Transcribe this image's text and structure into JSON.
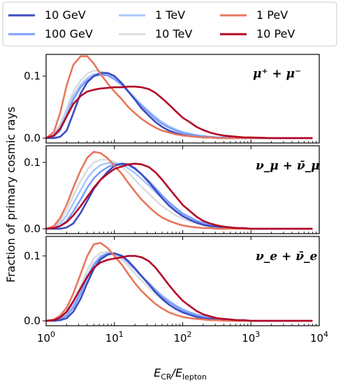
{
  "chart_data": {
    "type": "line",
    "ylabel": "Fraction of primary cosmic rays",
    "xlabel_main": "E",
    "xlabel_sub1": "CR",
    "xlabel_mid": "/E",
    "xlabel_sub2": "lepton",
    "xscale": "log",
    "xlim": [
      1,
      10000
    ],
    "x_ticks": [
      {
        "base": "10",
        "exp": "0"
      },
      {
        "base": "10",
        "exp": "1"
      },
      {
        "base": "10",
        "exp": "2"
      },
      {
        "base": "10",
        "exp": "3"
      },
      {
        "base": "10",
        "exp": "4"
      }
    ],
    "y_ticks": [
      "0.0",
      "0.1"
    ],
    "legend": {
      "placement": "top, outside, 3 columns",
      "entries": [
        {
          "name": "10 GeV",
          "color": "#3b4cc0"
        },
        {
          "name": "100 GeV",
          "color": "#7b9ff9"
        },
        {
          "name": "1 TeV",
          "color": "#aac7fd"
        },
        {
          "name": "10 TeV",
          "color": "#dcdddd"
        },
        {
          "name": "1 PeV",
          "color": "#e8765c"
        },
        {
          "name": "10 PeV",
          "color": "#b40426"
        }
      ]
    },
    "x": [
      1,
      1.3,
      1.6,
      2,
      2.5,
      3.2,
      4,
      5,
      6.3,
      8,
      10,
      13,
      16,
      20,
      25,
      32,
      40,
      50,
      63,
      80,
      100,
      130,
      160,
      200,
      250,
      320,
      400,
      500,
      630,
      800,
      1000,
      2000,
      5000,
      8000
    ],
    "panels": [
      {
        "label": "μ⁺ + μ⁻",
        "ylim": [
          0,
          0.135
        ],
        "series": [
          {
            "name": "10 GeV",
            "values": [
              0,
              0,
              0.002,
              0.012,
              0.04,
              0.072,
              0.09,
              0.1,
              0.105,
              0.105,
              0.1,
              0.088,
              0.075,
              0.062,
              0.048,
              0.036,
              0.026,
              0.018,
              0.012,
              0.008,
              0.005,
              0.003,
              0.002,
              0.001,
              0.001,
              0,
              0,
              0,
              0,
              0,
              0,
              0,
              0,
              0
            ]
          },
          {
            "name": "100 GeV",
            "values": [
              0,
              0.003,
              0.012,
              0.035,
              0.062,
              0.082,
              0.093,
              0.1,
              0.102,
              0.101,
              0.095,
              0.085,
              0.075,
              0.063,
              0.052,
              0.041,
              0.031,
              0.023,
              0.017,
              0.012,
              0.008,
              0.006,
              0.004,
              0.003,
              0.002,
              0.001,
              0.001,
              0,
              0,
              0,
              0,
              0,
              0,
              0
            ]
          },
          {
            "name": "1 TeV",
            "values": [
              0,
              0.005,
              0.018,
              0.042,
              0.068,
              0.086,
              0.097,
              0.103,
              0.104,
              0.102,
              0.096,
              0.086,
              0.076,
              0.065,
              0.054,
              0.043,
              0.034,
              0.026,
              0.019,
              0.014,
              0.01,
              0.007,
              0.005,
              0.003,
              0.002,
              0.001,
              0.001,
              0,
              0,
              0,
              0,
              0,
              0,
              0
            ]
          },
          {
            "name": "10 TeV",
            "values": [
              0,
              0.006,
              0.022,
              0.048,
              0.075,
              0.093,
              0.104,
              0.109,
              0.108,
              0.104,
              0.097,
              0.086,
              0.075,
              0.063,
              0.052,
              0.041,
              0.032,
              0.024,
              0.017,
              0.012,
              0.008,
              0.006,
              0.004,
              0.003,
              0.002,
              0.001,
              0.001,
              0,
              0,
              0,
              0,
              0,
              0,
              0
            ]
          },
          {
            "name": "1 PeV",
            "values": [
              0,
              0.01,
              0.04,
              0.085,
              0.118,
              0.132,
              0.132,
              0.12,
              0.103,
              0.088,
              0.075,
              0.062,
              0.05,
              0.04,
              0.031,
              0.023,
              0.017,
              0.012,
              0.009,
              0.006,
              0.004,
              0.003,
              0.002,
              0.001,
              0.001,
              0,
              0,
              0,
              0,
              0,
              0,
              0,
              0,
              0
            ]
          },
          {
            "name": "10 PeV",
            "values": [
              0,
              0.004,
              0.015,
              0.035,
              0.055,
              0.068,
              0.075,
              0.078,
              0.08,
              0.081,
              0.082,
              0.082,
              0.083,
              0.083,
              0.082,
              0.079,
              0.073,
              0.064,
              0.054,
              0.043,
              0.033,
              0.025,
              0.018,
              0.013,
              0.009,
              0.006,
              0.004,
              0.003,
              0.002,
              0.001,
              0.001,
              0,
              0,
              0
            ]
          }
        ]
      },
      {
        "label": "ν_μ + ν̄_μ",
        "ylim": [
          0,
          0.125
        ],
        "series": [
          {
            "name": "10 GeV",
            "values": [
              0,
              0,
              0,
              0.002,
              0.008,
              0.024,
              0.042,
              0.06,
              0.074,
              0.086,
              0.095,
              0.098,
              0.097,
              0.091,
              0.082,
              0.07,
              0.058,
              0.046,
              0.035,
              0.026,
              0.019,
              0.013,
              0.009,
              0.006,
              0.004,
              0.003,
              0.002,
              0.001,
              0.001,
              0,
              0,
              0,
              0,
              0
            ]
          },
          {
            "name": "100 GeV",
            "values": [
              0,
              0.001,
              0.004,
              0.012,
              0.026,
              0.044,
              0.062,
              0.076,
              0.086,
              0.093,
              0.097,
              0.098,
              0.096,
              0.09,
              0.082,
              0.072,
              0.061,
              0.05,
              0.04,
              0.031,
              0.023,
              0.017,
              0.012,
              0.009,
              0.006,
              0.004,
              0.003,
              0.002,
              0.001,
              0.001,
              0,
              0,
              0,
              0
            ]
          },
          {
            "name": "1 TeV",
            "values": [
              0,
              0.002,
              0.008,
              0.02,
              0.038,
              0.058,
              0.076,
              0.088,
              0.096,
              0.099,
              0.099,
              0.096,
              0.091,
              0.084,
              0.075,
              0.065,
              0.055,
              0.046,
              0.037,
              0.029,
              0.022,
              0.016,
              0.012,
              0.008,
              0.006,
              0.004,
              0.003,
              0.002,
              0.001,
              0.001,
              0,
              0,
              0,
              0
            ]
          },
          {
            "name": "10 TeV",
            "values": [
              0,
              0.003,
              0.012,
              0.028,
              0.05,
              0.072,
              0.089,
              0.1,
              0.104,
              0.104,
              0.1,
              0.093,
              0.084,
              0.074,
              0.063,
              0.053,
              0.043,
              0.034,
              0.027,
              0.02,
              0.015,
              0.011,
              0.008,
              0.005,
              0.004,
              0.003,
              0.002,
              0.001,
              0.001,
              0,
              0,
              0,
              0,
              0
            ]
          },
          {
            "name": "1 PeV",
            "values": [
              0,
              0.004,
              0.016,
              0.036,
              0.062,
              0.088,
              0.107,
              0.116,
              0.114,
              0.106,
              0.095,
              0.082,
              0.069,
              0.056,
              0.044,
              0.033,
              0.024,
              0.017,
              0.012,
              0.008,
              0.005,
              0.003,
              0.002,
              0.001,
              0.001,
              0,
              0,
              0,
              0,
              0,
              0,
              0,
              0,
              0
            ]
          },
          {
            "name": "10 PeV",
            "values": [
              0,
              0.001,
              0.004,
              0.01,
              0.02,
              0.034,
              0.048,
              0.062,
              0.074,
              0.083,
              0.09,
              0.094,
              0.097,
              0.098,
              0.097,
              0.093,
              0.085,
              0.074,
              0.061,
              0.048,
              0.036,
              0.026,
              0.018,
              0.012,
              0.008,
              0.005,
              0.003,
              0.002,
              0.001,
              0.001,
              0,
              0,
              0,
              0
            ]
          }
        ]
      },
      {
        "label": "ν_e + ν̄_e",
        "ylim": [
          0,
          0.13
        ],
        "series": [
          {
            "name": "10 GeV",
            "values": [
              0,
              0,
              0.001,
              0.004,
              0.014,
              0.034,
              0.058,
              0.08,
              0.095,
              0.102,
              0.104,
              0.1,
              0.092,
              0.081,
              0.069,
              0.056,
              0.044,
              0.034,
              0.025,
              0.018,
              0.013,
              0.009,
              0.006,
              0.004,
              0.003,
              0.002,
              0.001,
              0.001,
              0,
              0,
              0,
              0,
              0,
              0
            ]
          },
          {
            "name": "100 GeV",
            "values": [
              0,
              0.001,
              0.003,
              0.008,
              0.02,
              0.042,
              0.066,
              0.086,
              0.098,
              0.104,
              0.104,
              0.099,
              0.09,
              0.08,
              0.069,
              0.058,
              0.047,
              0.037,
              0.029,
              0.022,
              0.016,
              0.012,
              0.009,
              0.006,
              0.004,
              0.003,
              0.002,
              0.001,
              0.001,
              0,
              0,
              0,
              0,
              0
            ]
          },
          {
            "name": "1 TeV",
            "values": [
              0,
              0.001,
              0.004,
              0.01,
              0.024,
              0.046,
              0.07,
              0.088,
              0.1,
              0.104,
              0.103,
              0.098,
              0.089,
              0.079,
              0.068,
              0.058,
              0.048,
              0.039,
              0.031,
              0.024,
              0.018,
              0.013,
              0.01,
              0.007,
              0.005,
              0.003,
              0.002,
              0.002,
              0.001,
              0.001,
              0,
              0,
              0,
              0
            ]
          },
          {
            "name": "10 TeV",
            "values": [
              0,
              0.002,
              0.006,
              0.014,
              0.03,
              0.054,
              0.078,
              0.096,
              0.105,
              0.106,
              0.102,
              0.094,
              0.084,
              0.073,
              0.062,
              0.051,
              0.041,
              0.032,
              0.025,
              0.019,
              0.014,
              0.01,
              0.007,
              0.005,
              0.003,
              0.002,
              0.002,
              0.001,
              0.001,
              0,
              0,
              0,
              0,
              0
            ]
          },
          {
            "name": "1 PeV",
            "values": [
              0,
              0.002,
              0.008,
              0.02,
              0.042,
              0.072,
              0.1,
              0.118,
              0.12,
              0.112,
              0.1,
              0.086,
              0.072,
              0.058,
              0.046,
              0.035,
              0.026,
              0.019,
              0.013,
              0.009,
              0.006,
              0.004,
              0.003,
              0.002,
              0.001,
              0.001,
              0,
              0,
              0,
              0,
              0,
              0,
              0,
              0
            ]
          },
          {
            "name": "10 PeV",
            "values": [
              0,
              0.001,
              0.005,
              0.014,
              0.03,
              0.05,
              0.068,
              0.082,
              0.09,
              0.094,
              0.096,
              0.098,
              0.1,
              0.1,
              0.098,
              0.092,
              0.082,
              0.069,
              0.055,
              0.042,
              0.031,
              0.022,
              0.015,
              0.01,
              0.007,
              0.004,
              0.003,
              0.002,
              0.001,
              0.001,
              0,
              0,
              0,
              0
            ]
          }
        ]
      }
    ]
  }
}
